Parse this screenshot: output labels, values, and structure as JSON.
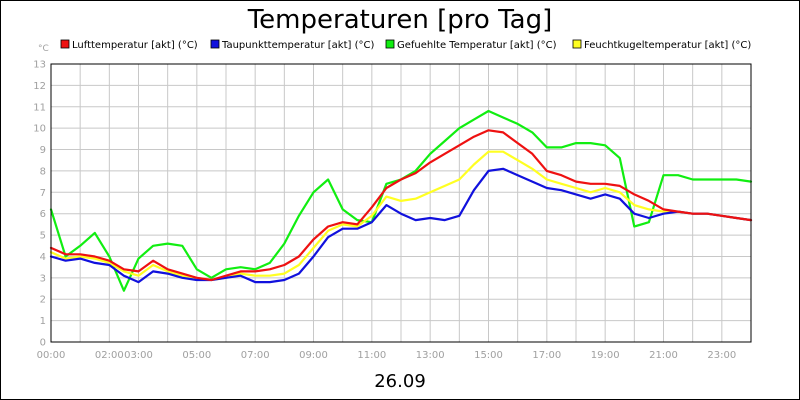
{
  "chart_data": {
    "type": "line",
    "title": "Temperaturen [pro Tag]",
    "footer_label": "26.09",
    "y_unit": "°C",
    "ylim": [
      0,
      13
    ],
    "y_ticks": [
      0,
      1,
      2,
      3,
      4,
      5,
      6,
      7,
      8,
      9,
      10,
      11,
      12,
      13
    ],
    "x_range_hours": [
      0,
      24
    ],
    "x_ticks": [
      {
        "label": "00:00",
        "hour": 0
      },
      {
        "label": "02:00",
        "hour": 2
      },
      {
        "label": "03:00",
        "hour": 3
      },
      {
        "label": "05:00",
        "hour": 5
      },
      {
        "label": "07:00",
        "hour": 7
      },
      {
        "label": "09:00",
        "hour": 9
      },
      {
        "label": "11:00",
        "hour": 11
      },
      {
        "label": "13:00",
        "hour": 13
      },
      {
        "label": "15:00",
        "hour": 15
      },
      {
        "label": "17:00",
        "hour": 17
      },
      {
        "label": "19:00",
        "hour": 19
      },
      {
        "label": "21:00",
        "hour": 21
      },
      {
        "label": "23:00",
        "hour": 23
      }
    ],
    "grid": true,
    "legend_position": "top",
    "x": [
      0,
      0.5,
      1,
      1.5,
      2,
      2.5,
      3,
      3.5,
      4,
      4.5,
      5,
      5.5,
      6,
      6.5,
      7,
      7.5,
      8,
      8.5,
      9,
      9.5,
      10,
      10.5,
      11,
      11.5,
      12,
      12.5,
      13,
      13.5,
      14,
      14.5,
      15,
      15.5,
      16,
      16.5,
      17,
      17.5,
      18,
      18.5,
      19,
      19.5,
      20,
      20.5,
      21,
      21.5,
      22,
      22.5,
      23,
      23.5,
      24
    ],
    "series": [
      {
        "name": "Lufttemperatur [akt] (°C)",
        "color": "#ee1111",
        "values": [
          4.4,
          4.1,
          4.1,
          4.0,
          3.8,
          3.4,
          3.3,
          3.8,
          3.4,
          3.2,
          3.0,
          2.9,
          3.1,
          3.3,
          3.3,
          3.4,
          3.6,
          4.0,
          4.8,
          5.4,
          5.6,
          5.5,
          6.3,
          7.2,
          7.6,
          7.9,
          8.4,
          8.8,
          9.2,
          9.6,
          9.9,
          9.8,
          9.3,
          8.8,
          8.0,
          7.8,
          7.5,
          7.4,
          7.4,
          7.3,
          6.9,
          6.6,
          6.2,
          6.1,
          6.0,
          6.0,
          5.9,
          5.8,
          5.7
        ]
      },
      {
        "name": "Taupunkttemperatur [akt] (°C)",
        "color": "#1111dd",
        "values": [
          4.0,
          3.8,
          3.9,
          3.7,
          3.6,
          3.1,
          2.8,
          3.3,
          3.2,
          3.0,
          2.9,
          2.9,
          3.0,
          3.1,
          2.8,
          2.8,
          2.9,
          3.2,
          4.0,
          4.9,
          5.3,
          5.3,
          5.6,
          6.4,
          6.0,
          5.7,
          5.8,
          5.7,
          5.9,
          7.1,
          8.0,
          8.1,
          7.8,
          7.5,
          7.2,
          7.1,
          6.9,
          6.7,
          6.9,
          6.7,
          6.0,
          5.8,
          6.0,
          6.1,
          6.0,
          6.0,
          5.9,
          5.8,
          5.7
        ]
      },
      {
        "name": "Gefuehlte Temperatur [akt] (°C)",
        "color": "#11ee11",
        "values": [
          6.2,
          4.0,
          4.5,
          5.1,
          4.0,
          2.4,
          3.9,
          4.5,
          4.6,
          4.5,
          3.4,
          3.0,
          3.4,
          3.5,
          3.4,
          3.7,
          4.6,
          5.9,
          7.0,
          7.6,
          6.2,
          5.7,
          5.6,
          7.4,
          7.6,
          8.0,
          8.8,
          9.4,
          10.0,
          10.4,
          10.8,
          10.5,
          10.2,
          9.8,
          9.1,
          9.1,
          9.3,
          9.3,
          9.2,
          8.6,
          5.4,
          5.6,
          7.8,
          7.8,
          7.6,
          7.6,
          7.6,
          7.6,
          7.5
        ]
      },
      {
        "name": "Feuchtkugeltemperatur [akt] (°C)",
        "color": "#ffff22",
        "values": [
          4.2,
          3.9,
          4.0,
          3.9,
          3.7,
          3.3,
          3.1,
          3.6,
          3.3,
          3.1,
          3.0,
          2.9,
          3.0,
          3.2,
          3.1,
          3.1,
          3.2,
          3.6,
          4.4,
          5.2,
          5.5,
          5.4,
          5.9,
          6.8,
          6.6,
          6.7,
          7.0,
          7.3,
          7.6,
          8.3,
          8.9,
          8.9,
          8.5,
          8.1,
          7.6,
          7.4,
          7.2,
          7.0,
          7.2,
          7.0,
          6.4,
          6.2,
          6.1,
          6.1,
          6.0,
          6.0,
          5.9,
          5.8,
          5.7
        ]
      }
    ]
  }
}
